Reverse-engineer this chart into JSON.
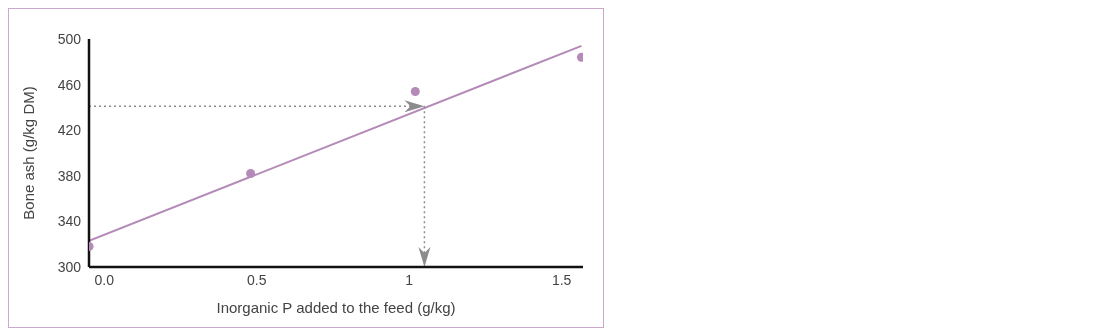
{
  "chart_data": {
    "type": "scatter",
    "xlabel": "Inorganic P added to the feed (g/kg)",
    "ylabel": "Bone ash (g/kg DM)",
    "xlim": [
      -0.05,
      1.57
    ],
    "xticks": [
      {
        "value": 0,
        "label": "0.0"
      },
      0.5,
      1,
      1.5
    ],
    "ylim": [
      300,
      500
    ],
    "yticks": [
      300,
      340,
      380,
      420,
      460,
      500
    ],
    "grid": false,
    "series": [
      {
        "type": "scatter",
        "marker": "circle",
        "color": "#b48ab8",
        "x": [
          -0.05,
          0.48,
          1.02,
          1.565
        ],
        "values": [
          318,
          382,
          454,
          484
        ]
      },
      {
        "type": "line",
        "marker": "none",
        "color": "#b48ab8",
        "x": [
          -0.05,
          1.565
        ],
        "values": [
          323,
          494
        ]
      }
    ],
    "ref_lines": [
      {
        "axis": "y",
        "value": 441,
        "color": "#8c8c8c",
        "line_style": "dotted"
      },
      {
        "axis": "x",
        "value": 1.05,
        "color": "#8c8c8c",
        "line_style": "dotted"
      }
    ]
  }
}
